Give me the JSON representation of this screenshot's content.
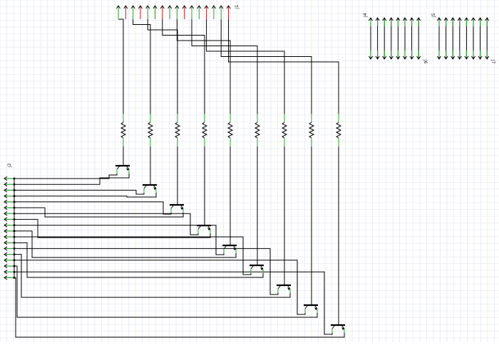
{
  "schematic": {
    "connectors": {
      "j1": {
        "label": "J1",
        "pins": 16
      },
      "j2": {
        "label": "J2",
        "pins": 18
      },
      "j4": {
        "label": "J4",
        "pins": 8
      },
      "j5": {
        "label": "J5",
        "pins": 8
      },
      "j6": {
        "label": "J6"
      },
      "j7": {
        "label": "J7"
      }
    },
    "resistor_count": 9,
    "transistor_count": 9
  },
  "colors": {
    "background": "#ffffff",
    "grid": "#dfe3ee",
    "wire": "#000000",
    "pin_connected": "#2ea02e",
    "pin_unconnected": "#c0181b"
  }
}
